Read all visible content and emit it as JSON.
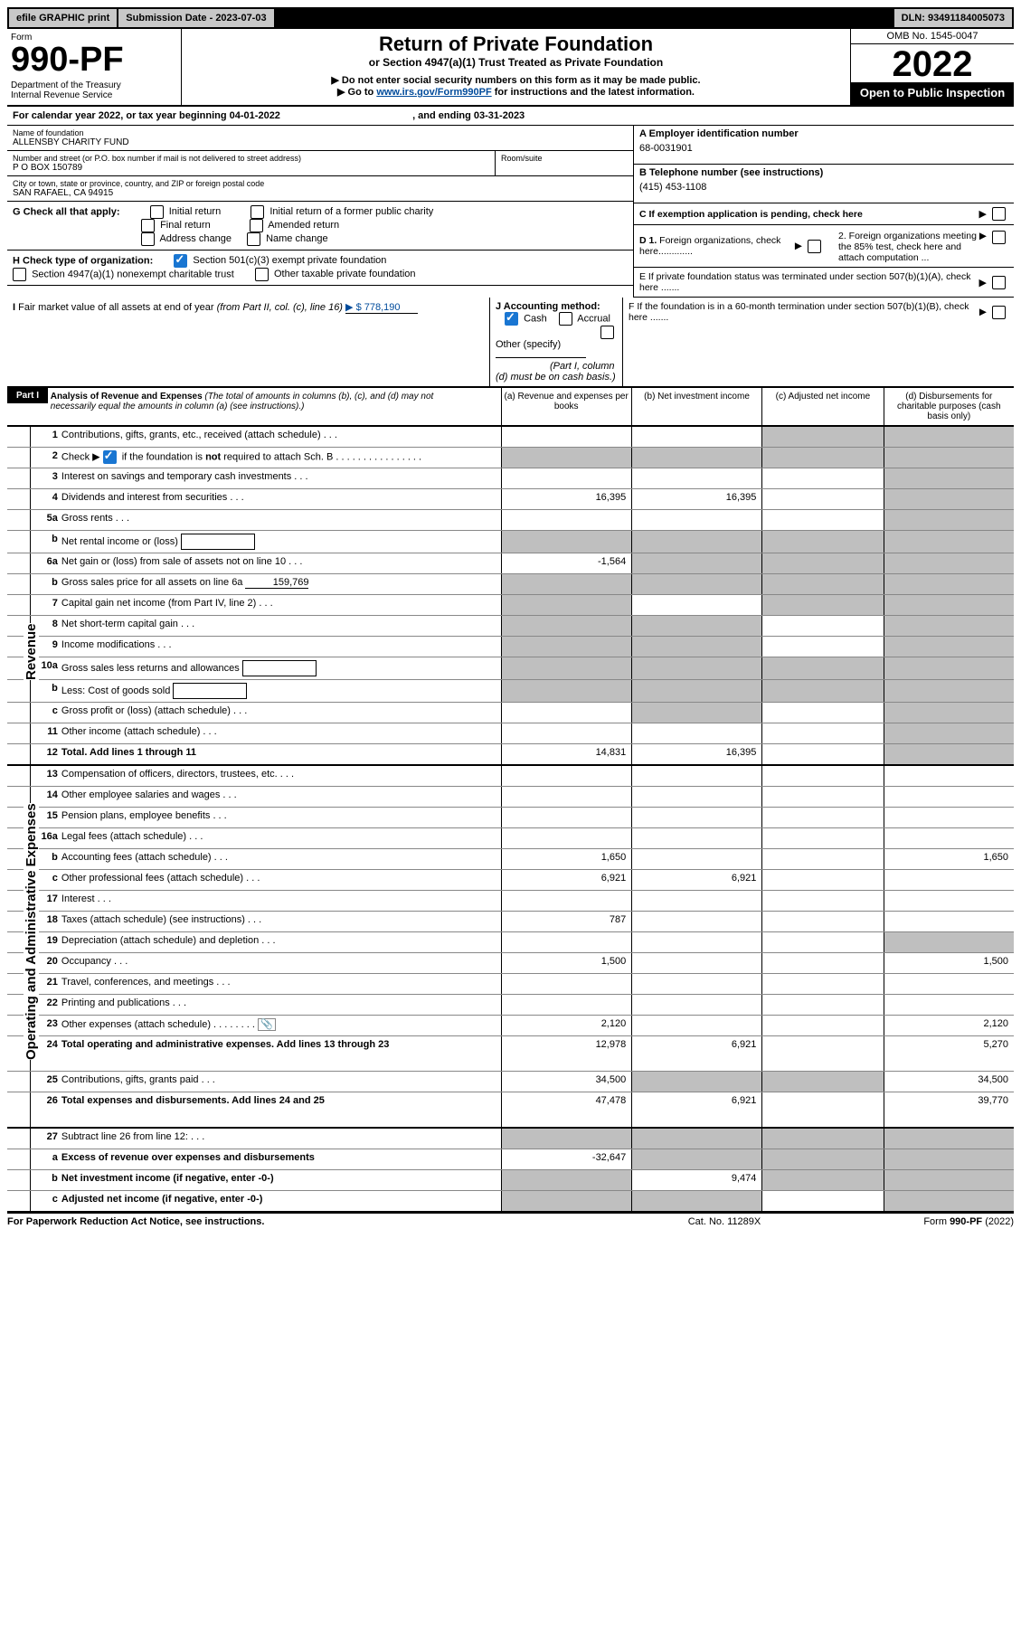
{
  "topbar": {
    "efile": "efile GRAPHIC print",
    "submission_label": "Submission Date - 2023-07-03",
    "dln": "DLN: 93491184005073"
  },
  "form": {
    "form_word": "Form",
    "number": "990-PF",
    "dept1": "Department of the Treasury",
    "dept2": "Internal Revenue Service"
  },
  "header": {
    "title": "Return of Private Foundation",
    "subtitle": "or Section 4947(a)(1) Trust Treated as Private Foundation",
    "instr1": "▶ Do not enter social security numbers on this form as it may be made public.",
    "instr2_pre": "▶ Go to ",
    "instr2_link": "www.irs.gov/Form990PF",
    "instr2_post": " for instructions and the latest information."
  },
  "right": {
    "omb": "OMB No. 1545-0047",
    "year": "2022",
    "open": "Open to Public Inspection"
  },
  "calyear": {
    "pre": "For calendar year 2022, or tax year beginning ",
    "begin": "04-01-2022",
    "mid": ", and ending ",
    "end": "03-31-2023"
  },
  "nameaddr": {
    "name_lbl": "Name of foundation",
    "name": "ALLENSBY CHARITY FUND",
    "street_lbl": "Number and street (or P.O. box number if mail is not delivered to street address)",
    "street": "P O BOX 150789",
    "room_lbl": "Room/suite",
    "room": "",
    "city_lbl": "City or town, state or province, country, and ZIP or foreign postal code",
    "city": "SAN RAFAEL, CA  94915"
  },
  "boxA": {
    "lbl": "A Employer identification number",
    "val": "68-0031901"
  },
  "boxB": {
    "lbl": "B Telephone number (see instructions)",
    "val": "(415) 453-1108"
  },
  "boxC": {
    "lbl": "C If exemption application is pending, check here"
  },
  "boxD1": "D 1. Foreign organizations, check here.............",
  "boxD2": "2. Foreign organizations meeting the 85% test, check here and attach computation ...",
  "boxE": "E  If private foundation status was terminated under section 507(b)(1)(A), check here .......",
  "boxF": "F  If the foundation is in a 60-month termination under section 507(b)(1)(B), check here .......",
  "G": {
    "lbl": "G Check all that apply:",
    "opts": {
      "initial": "Initial return",
      "initial_former": "Initial return of a former public charity",
      "final": "Final return",
      "amended": "Amended return",
      "addr": "Address change",
      "name": "Name change"
    }
  },
  "H": {
    "lbl": "H Check type of organization:",
    "opt1": "Section 501(c)(3) exempt private foundation",
    "opt2": "Section 4947(a)(1) nonexempt charitable trust",
    "opt3": "Other taxable private foundation"
  },
  "I": {
    "lbl": "I Fair market value of all assets at end of year (from Part II, col. (c), line 16)",
    "arrow_val": "▶ $  778,190"
  },
  "J": {
    "lbl": "J Accounting method:",
    "cash": "Cash",
    "accrual": "Accrual",
    "other": "Other (specify)",
    "note": "(Part I, column (d) must be on cash basis.)"
  },
  "part1": {
    "label": "Part I",
    "title": "Analysis of Revenue and Expenses",
    "title_note": " (The total of amounts in columns (b), (c), and (d) may not necessarily equal the amounts in column (a) (see instructions).)",
    "col_a": "(a) Revenue and expenses per books",
    "col_b": "(b) Net investment income",
    "col_c": "(c) Adjusted net income",
    "col_d": "(d) Disbursements for charitable purposes (cash basis only)"
  },
  "sidebar_rev": "Revenue",
  "sidebar_exp": "Operating and Administrative Expenses",
  "rows": [
    {
      "n": "1",
      "t": "Contributions, gifts, grants, etc., received (attach schedule)",
      "a": "",
      "b": "",
      "c": "grey",
      "d": "grey"
    },
    {
      "n": "2",
      "t": "Check ▶ ☑ if the foundation is not required to attach Sch. B",
      "a": "grey",
      "b": "grey",
      "c": "grey",
      "d": "grey",
      "checked": true
    },
    {
      "n": "3",
      "t": "Interest on savings and temporary cash investments",
      "a": "",
      "b": "",
      "c": "",
      "d": "grey"
    },
    {
      "n": "4",
      "t": "Dividends and interest from securities",
      "a": "16,395",
      "b": "16,395",
      "c": "",
      "d": "grey"
    },
    {
      "n": "5a",
      "t": "Gross rents",
      "a": "",
      "b": "",
      "c": "",
      "d": "grey"
    },
    {
      "n": "b",
      "t": "Net rental income or (loss)",
      "a": "grey",
      "b": "grey",
      "c": "grey",
      "d": "grey",
      "sub": true
    },
    {
      "n": "6a",
      "t": "Net gain or (loss) from sale of assets not on line 10",
      "a": "-1,564",
      "b": "grey",
      "c": "grey",
      "d": "grey"
    },
    {
      "n": "b",
      "t": "Gross sales price for all assets on line 6a",
      "a": "grey",
      "b": "grey",
      "c": "grey",
      "d": "grey",
      "val_inline": "159,769"
    },
    {
      "n": "7",
      "t": "Capital gain net income (from Part IV, line 2)",
      "a": "grey",
      "b": "",
      "c": "grey",
      "d": "grey"
    },
    {
      "n": "8",
      "t": "Net short-term capital gain",
      "a": "grey",
      "b": "grey",
      "c": "",
      "d": "grey"
    },
    {
      "n": "9",
      "t": "Income modifications",
      "a": "grey",
      "b": "grey",
      "c": "",
      "d": "grey"
    },
    {
      "n": "10a",
      "t": "Gross sales less returns and allowances",
      "a": "grey",
      "b": "grey",
      "c": "grey",
      "d": "grey",
      "sub": true
    },
    {
      "n": "b",
      "t": "Less: Cost of goods sold",
      "a": "grey",
      "b": "grey",
      "c": "grey",
      "d": "grey",
      "sub": true
    },
    {
      "n": "c",
      "t": "Gross profit or (loss) (attach schedule)",
      "a": "",
      "b": "grey",
      "c": "",
      "d": "grey"
    },
    {
      "n": "11",
      "t": "Other income (attach schedule)",
      "a": "",
      "b": "",
      "c": "",
      "d": "grey"
    },
    {
      "n": "12",
      "t": "Total. Add lines 1 through 11",
      "bold": true,
      "a": "14,831",
      "b": "16,395",
      "c": "",
      "d": "grey"
    },
    {
      "n": "13",
      "t": "Compensation of officers, directors, trustees, etc.",
      "a": "",
      "b": "",
      "c": "",
      "d": ""
    },
    {
      "n": "14",
      "t": "Other employee salaries and wages",
      "a": "",
      "b": "",
      "c": "",
      "d": ""
    },
    {
      "n": "15",
      "t": "Pension plans, employee benefits",
      "a": "",
      "b": "",
      "c": "",
      "d": ""
    },
    {
      "n": "16a",
      "t": "Legal fees (attach schedule)",
      "a": "",
      "b": "",
      "c": "",
      "d": ""
    },
    {
      "n": "b",
      "t": "Accounting fees (attach schedule)",
      "a": "1,650",
      "b": "",
      "c": "",
      "d": "1,650"
    },
    {
      "n": "c",
      "t": "Other professional fees (attach schedule)",
      "a": "6,921",
      "b": "6,921",
      "c": "",
      "d": ""
    },
    {
      "n": "17",
      "t": "Interest",
      "a": "",
      "b": "",
      "c": "",
      "d": ""
    },
    {
      "n": "18",
      "t": "Taxes (attach schedule) (see instructions)",
      "a": "787",
      "b": "",
      "c": "",
      "d": ""
    },
    {
      "n": "19",
      "t": "Depreciation (attach schedule) and depletion",
      "a": "",
      "b": "",
      "c": "",
      "d": "grey"
    },
    {
      "n": "20",
      "t": "Occupancy",
      "a": "1,500",
      "b": "",
      "c": "",
      "d": "1,500"
    },
    {
      "n": "21",
      "t": "Travel, conferences, and meetings",
      "a": "",
      "b": "",
      "c": "",
      "d": ""
    },
    {
      "n": "22",
      "t": "Printing and publications",
      "a": "",
      "b": "",
      "c": "",
      "d": ""
    },
    {
      "n": "23",
      "t": "Other expenses (attach schedule)",
      "a": "2,120",
      "b": "",
      "c": "",
      "d": "2,120",
      "icon": true
    },
    {
      "n": "24",
      "t": "Total operating and administrative expenses. Add lines 13 through 23",
      "bold": true,
      "a": "12,978",
      "b": "6,921",
      "c": "",
      "d": "5,270",
      "tall": true
    },
    {
      "n": "25",
      "t": "Contributions, gifts, grants paid",
      "a": "34,500",
      "b": "grey",
      "c": "grey",
      "d": "34,500"
    },
    {
      "n": "26",
      "t": "Total expenses and disbursements. Add lines 24 and 25",
      "bold": true,
      "a": "47,478",
      "b": "6,921",
      "c": "",
      "d": "39,770",
      "tall": true
    },
    {
      "n": "27",
      "t": "Subtract line 26 from line 12:",
      "a": "grey",
      "b": "grey",
      "c": "grey",
      "d": "grey"
    },
    {
      "n": "a",
      "t": "Excess of revenue over expenses and disbursements",
      "bold": true,
      "a": "-32,647",
      "b": "grey",
      "c": "grey",
      "d": "grey"
    },
    {
      "n": "b",
      "t": "Net investment income (if negative, enter -0-)",
      "bold": true,
      "a": "grey",
      "b": "9,474",
      "c": "grey",
      "d": "grey"
    },
    {
      "n": "c",
      "t": "Adjusted net income (if negative, enter -0-)",
      "bold": true,
      "a": "grey",
      "b": "grey",
      "c": "",
      "d": "grey"
    }
  ],
  "footer": {
    "left": "For Paperwork Reduction Act Notice, see instructions.",
    "mid": "Cat. No. 11289X",
    "right": "Form 990-PF (2022)"
  }
}
